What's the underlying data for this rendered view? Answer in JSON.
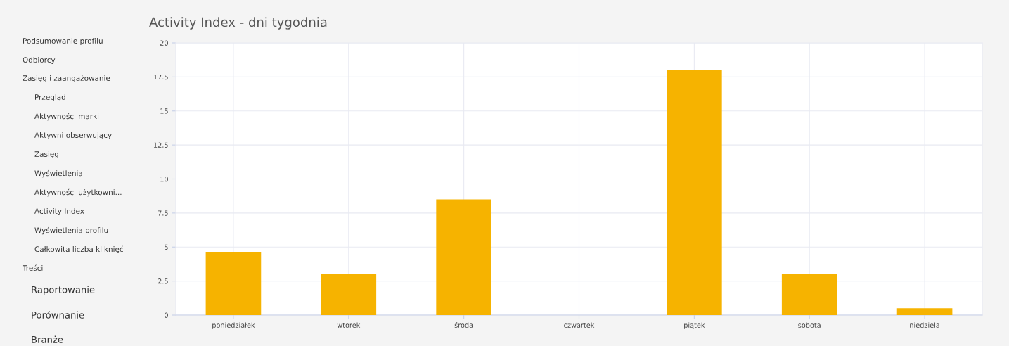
{
  "chart_data": {
    "type": "bar",
    "title": "Activity Index - dni tygodnia",
    "categories": [
      "poniedziałek",
      "wtorek",
      "środa",
      "czwartek",
      "piątek",
      "sobota",
      "niedziela"
    ],
    "values": [
      4.6,
      3,
      8.5,
      0,
      18,
      3,
      0.5
    ],
    "color": "#f6b300",
    "ylim": [
      0,
      20
    ],
    "yticks": [
      0,
      2.5,
      5,
      7.5,
      10,
      12.5,
      15,
      17.5,
      20
    ],
    "grid": true,
    "annotations": [
      "Podsumowanie profilu",
      "Odbiorcy",
      "Zasięg i zaangażowanie",
      "Przegląd",
      "Aktywności marki",
      "Aktywni obserwujący",
      "Zasięg",
      "Wyświetlenia",
      "Aktywności użytkowni...",
      "Activity Index",
      "Wyświetlenia profilu",
      "Całkowita liczba kliknięć",
      "Treści",
      "Raportowanie",
      "Porównanie",
      "Branże"
    ]
  }
}
